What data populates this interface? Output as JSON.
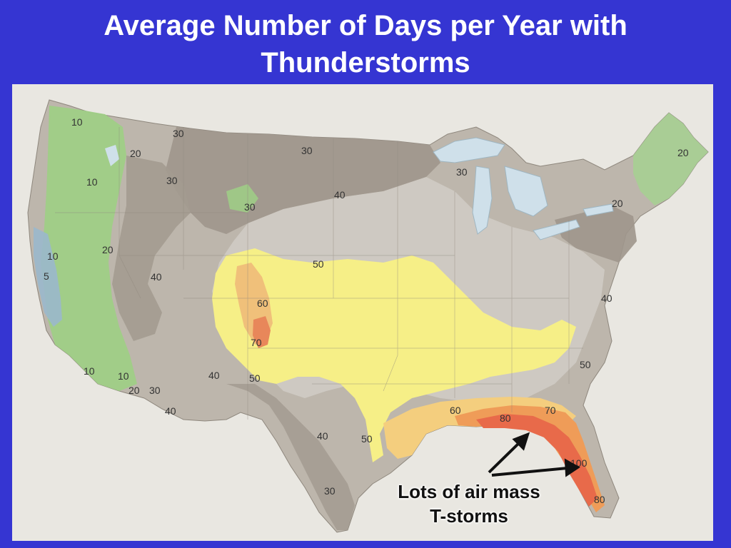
{
  "title": {
    "line1": "Average Number of Days per Year with",
    "line2": "Thunderstorms"
  },
  "map": {
    "labels": [
      "10",
      "20",
      "10",
      "30",
      "30",
      "30",
      "30",
      "40",
      "20",
      "30",
      "20",
      "10",
      "5",
      "20",
      "40",
      "50",
      "60",
      "70",
      "40",
      "50",
      "10",
      "10",
      "20",
      "30",
      "40",
      "40",
      "50",
      "60",
      "80",
      "70",
      "100",
      "80",
      "30",
      "50",
      "40"
    ],
    "colors": {
      "background": "#3535d2",
      "land_gray": "#bdb6ac",
      "zone_30": "#9e968c",
      "zone_40": "#cfcac3",
      "zone_50": "#f6ef87",
      "zone_60": "#f4ce7e",
      "zone_70": "#ef9c58",
      "zone_80": "#e86a4a",
      "zone_10_20": "#9fcf86",
      "zone_5": "#9ab8cc",
      "water": "#cfe0ea",
      "ocean": "#e9e7e1"
    }
  },
  "callout": {
    "line1": "Lots of air mass",
    "line2": "T-storms"
  }
}
